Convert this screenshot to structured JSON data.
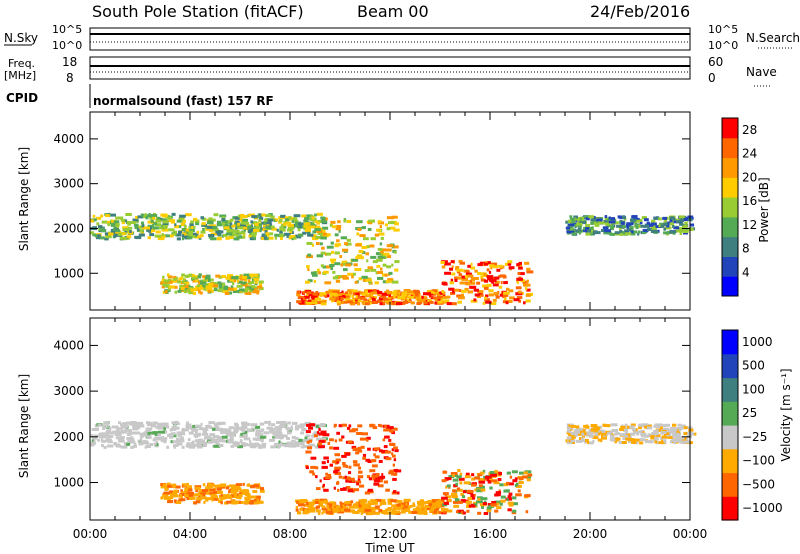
{
  "header": {
    "title": "South Pole Station (fitACF)",
    "beam": "Beam 00",
    "date": "24/Feb/2016"
  },
  "strip_labels": {
    "nsky": "N.Sky",
    "nsky_ticks": [
      "10^5",
      "10^0"
    ],
    "nsearch": "N.Search",
    "nsearch_ticks": [
      "10^5",
      "10^0"
    ],
    "freq_line1": "Freq.",
    "freq_line2": "[MHz]",
    "freq_ticks": [
      "18",
      "8"
    ],
    "nave": "Nave",
    "nave_ticks": [
      "60",
      "0"
    ],
    "cpid": "CPID",
    "cpid_text": "normalsound (fast) 157 RF"
  },
  "chart_data": [
    {
      "type": "heatmap",
      "panel": "power",
      "ylabel": "Slant Range [km]",
      "yticks": [
        "1000",
        "2000",
        "3000",
        "4000"
      ],
      "ylim": [
        180,
        4600
      ],
      "colorbar_label": "Power [dB]",
      "colorbar_ticks": [
        "4",
        "8",
        "12",
        "16",
        "20",
        "24",
        "28"
      ],
      "colorbar_range": [
        0,
        30
      ],
      "colors": [
        "#0000ff",
        "#2244bb",
        "#3f7f7f",
        "#55aa55",
        "#99cc33",
        "#ffcc00",
        "#ff9900",
        "#ff6600",
        "#ff0000"
      ],
      "features": [
        {
          "t_start": 0.0,
          "t_end": 9.3,
          "r_low": 1800,
          "r_high": 2350,
          "level": "low-mid"
        },
        {
          "t_start": 2.8,
          "t_end": 6.8,
          "r_low": 580,
          "r_high": 1000,
          "level": "mid"
        },
        {
          "t_start": 8.2,
          "t_end": 14.0,
          "r_low": 350,
          "r_high": 650,
          "level": "high"
        },
        {
          "t_start": 14.0,
          "t_end": 17.5,
          "r_low": 350,
          "r_high": 1300,
          "level": "high"
        },
        {
          "t_start": 8.6,
          "t_end": 12.2,
          "r_low": 800,
          "r_high": 2300,
          "level": "mid"
        },
        {
          "t_start": 19.0,
          "t_end": 24.0,
          "r_low": 1900,
          "r_high": 2300,
          "level": "low"
        }
      ]
    },
    {
      "type": "heatmap",
      "panel": "velocity",
      "ylabel": "Slant Range [km]",
      "yticks": [
        "1000",
        "2000",
        "3000",
        "4000"
      ],
      "ylim": [
        180,
        4600
      ],
      "xlabel": "Time UT",
      "xticks": [
        "00:00",
        "04:00",
        "08:00",
        "12:00",
        "16:00",
        "20:00",
        "00:00"
      ],
      "xlim": [
        0,
        24
      ],
      "colorbar_label": "Velocity [m s⁻¹]",
      "colorbar_ticks": [
        "1000",
        "500",
        "100",
        "25",
        "−25",
        "−100",
        "−500",
        "−1000"
      ],
      "colors": [
        "#0000ff",
        "#2244bb",
        "#3f7f7f",
        "#55aa55",
        "#c8c8c8",
        "#ffaa00",
        "#ff6600",
        "#ff0000"
      ],
      "features": [
        {
          "t_start": 0.0,
          "t_end": 9.3,
          "r_low": 1800,
          "r_high": 2350,
          "velocity": "ground"
        },
        {
          "t_start": 2.8,
          "t_end": 6.8,
          "r_low": 580,
          "r_high": 1000,
          "velocity": "-100"
        },
        {
          "t_start": 8.2,
          "t_end": 14.0,
          "r_low": 350,
          "r_high": 650,
          "velocity": "-100"
        },
        {
          "t_start": 14.0,
          "t_end": 17.5,
          "r_low": 350,
          "r_high": 1300,
          "velocity": "-500 to 100"
        },
        {
          "t_start": 8.6,
          "t_end": 12.2,
          "r_low": 800,
          "r_high": 2300,
          "velocity": "-500"
        },
        {
          "t_start": 19.0,
          "t_end": 24.0,
          "r_low": 1900,
          "r_high": 2300,
          "velocity": "ground/-100"
        }
      ]
    }
  ],
  "time_label": "Time UT"
}
